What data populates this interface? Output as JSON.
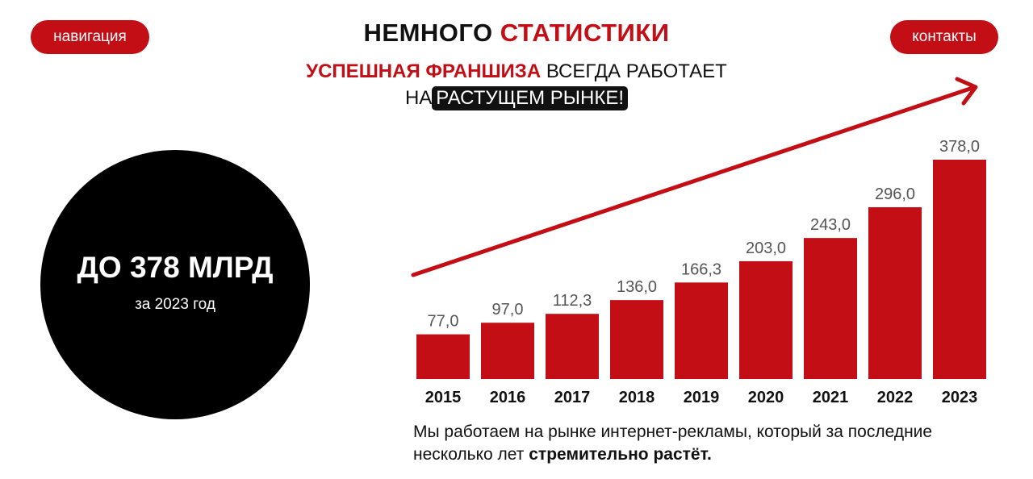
{
  "header": {
    "nav_label": "навигация",
    "contacts_label": "контакты",
    "title_part1": "НЕМНОГО",
    "title_part2": "СТАТИСТИКИ"
  },
  "subtitle": {
    "line1_highlight": "УСПЕШНАЯ ФРАНШИЗА",
    "line1_rest": "ВСЕГДА РАБОТАЕТ",
    "line2_prefix": "НА",
    "line2_highlight": "РАСТУЩЕМ РЫНКЕ!"
  },
  "circle": {
    "main": "ДО 378 МЛРД",
    "sub": "за 2023 год"
  },
  "description": {
    "text": "Мы работаем на рынке интернет-рекламы, который за последние несколько лет",
    "bold": "стремительно растёт."
  },
  "colors": {
    "accent": "#c20e14",
    "dark": "#111111",
    "bar": "#c20e14",
    "value_label": "#555555"
  },
  "chart_data": {
    "type": "bar",
    "categories": [
      "2015",
      "2016",
      "2017",
      "2018",
      "2019",
      "2020",
      "2021",
      "2022",
      "2023"
    ],
    "values": [
      77.0,
      97.0,
      112.3,
      136.0,
      166.3,
      203.0,
      243.0,
      296.0,
      378.0
    ],
    "value_labels": [
      "77,0",
      "97,0",
      "112,3",
      "136,0",
      "166,3",
      "203,0",
      "243,0",
      "296,0",
      "378,0"
    ],
    "ylim": [
      0,
      378
    ],
    "trend_arrow": true,
    "grid": false
  }
}
